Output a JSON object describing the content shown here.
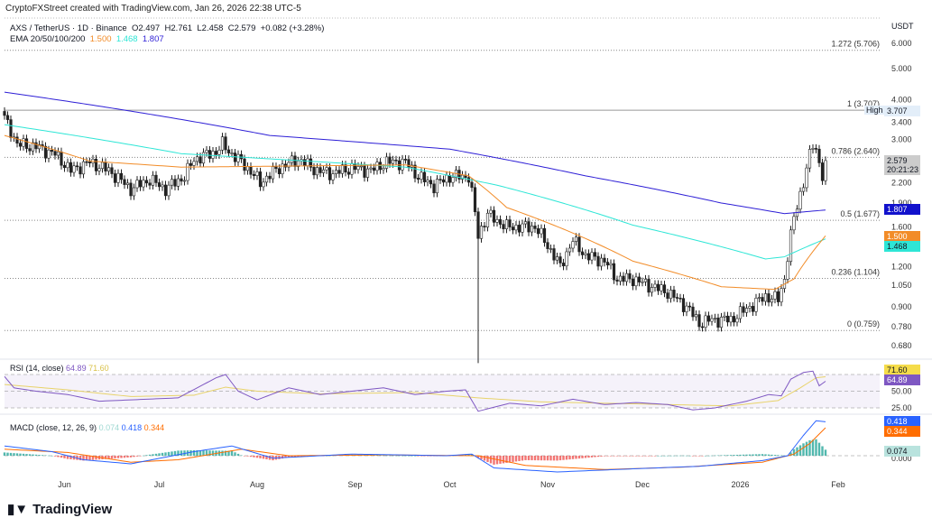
{
  "header": {
    "credit": "CryptoFXStreet created with TradingView.com, Jan 26, 2026 22:38 UTC-5"
  },
  "legend": {
    "symbol": "AXS / TetherUS · 1D · Binance",
    "open": "O2.497",
    "high": "H2.761",
    "low": "L2.458",
    "close": "C2.579",
    "change": "+0.082 (+3.28%)",
    "ema_label": "EMA 20/50/100/200",
    "ema50": "1.500",
    "ema100": "1.468",
    "ema200": "1.807"
  },
  "colors": {
    "ema50": "#f28c28",
    "ema100": "#2ee6d6",
    "ema200": "#2e1fd6",
    "rsi": "#7e57c2",
    "rsi_ma": "#e8d36a",
    "macd": "#2962ff",
    "signal": "#ff6d00",
    "hist_up": "#26a69a",
    "hist_dn": "#ef5350"
  },
  "axis": {
    "currency": "USDT",
    "high_label": "High",
    "countdown": "20:21:23",
    "last_price": "2.579"
  },
  "rsi_legend": {
    "label": "RSI (14, close)",
    "value": "64.89",
    "ma": "71.60"
  },
  "macd_legend": {
    "label": "MACD (close, 12, 26, 9)",
    "hist": "0.074",
    "macd": "0.418",
    "signal": "0.344"
  },
  "brand": "TradingView",
  "chart_data": {
    "type": "candlestick",
    "title": "AXS / TetherUS · 1D · Binance",
    "yscale": "log",
    "ylim": [
      0.63,
      7.2
    ],
    "yticks": [
      "6.000",
      "5.000",
      "4.000",
      "3.400",
      "3.000",
      "2.200",
      "1.900",
      "1.600",
      "1.200",
      "1.050",
      "0.900",
      "0.780",
      "0.680"
    ],
    "xticks": [
      {
        "label": "Jun",
        "day": 19
      },
      {
        "label": "Jul",
        "day": 49
      },
      {
        "label": "Aug",
        "day": 80
      },
      {
        "label": "Sep",
        "day": 111
      },
      {
        "label": "Oct",
        "day": 141
      },
      {
        "label": "Nov",
        "day": 172
      },
      {
        "label": "Dec",
        "day": 202
      },
      {
        "label": "2026",
        "day": 233
      },
      {
        "label": "Feb",
        "day": 264
      }
    ],
    "fib_levels": [
      {
        "label": "1.272 (5.706)",
        "value": 5.706
      },
      {
        "label": "1 (3.707)",
        "value": 3.707
      },
      {
        "label": "0.786 (2.640)",
        "value": 2.64
      },
      {
        "label": "0.5 (1.677)",
        "value": 1.677
      },
      {
        "label": "0.236 (1.104)",
        "value": 1.104
      },
      {
        "label": "0 (0.759)",
        "value": 0.759
      }
    ],
    "close_points": [
      [
        0,
        3.5
      ],
      [
        4,
        2.9
      ],
      [
        10,
        2.85
      ],
      [
        16,
        2.7
      ],
      [
        21,
        2.4
      ],
      [
        27,
        2.55
      ],
      [
        33,
        2.4
      ],
      [
        40,
        2.1
      ],
      [
        46,
        2.25
      ],
      [
        51,
        2.1
      ],
      [
        57,
        2.3
      ],
      [
        60,
        2.6
      ],
      [
        67,
        2.75
      ],
      [
        69,
        2.9
      ],
      [
        72,
        2.7
      ],
      [
        76,
        2.5
      ],
      [
        81,
        2.2
      ],
      [
        87,
        2.45
      ],
      [
        93,
        2.6
      ],
      [
        99,
        2.4
      ],
      [
        104,
        2.35
      ],
      [
        110,
        2.45
      ],
      [
        116,
        2.4
      ],
      [
        121,
        2.55
      ],
      [
        127,
        2.55
      ],
      [
        131,
        2.3
      ],
      [
        136,
        2.15
      ],
      [
        141,
        2.3
      ],
      [
        147,
        2.3
      ],
      [
        150,
        1.5
      ],
      [
        153,
        1.75
      ],
      [
        159,
        1.6
      ],
      [
        164,
        1.6
      ],
      [
        168,
        1.6
      ],
      [
        171,
        1.45
      ],
      [
        176,
        1.2
      ],
      [
        180,
        1.45
      ],
      [
        184,
        1.3
      ],
      [
        190,
        1.25
      ],
      [
        194,
        1.1
      ],
      [
        199,
        1.1
      ],
      [
        204,
        1.05
      ],
      [
        210,
        1.0
      ],
      [
        216,
        0.9
      ],
      [
        220,
        0.8
      ],
      [
        224,
        0.82
      ],
      [
        230,
        0.82
      ],
      [
        236,
        0.9
      ],
      [
        241,
        0.97
      ],
      [
        245,
        0.95
      ],
      [
        247,
        1.1
      ],
      [
        250,
        1.7
      ],
      [
        253,
        2.2
      ],
      [
        256,
        2.9
      ],
      [
        257,
        2.8
      ],
      [
        259,
        2.3
      ],
      [
        260,
        2.579
      ]
    ],
    "ema200": [
      [
        0,
        4.22
      ],
      [
        84,
        3.09
      ],
      [
        141,
        2.8
      ],
      [
        184,
        2.31
      ],
      [
        227,
        1.9
      ],
      [
        247,
        1.76
      ],
      [
        260,
        1.807
      ]
    ],
    "ema100": [
      [
        0,
        3.34
      ],
      [
        56,
        2.71
      ],
      [
        127,
        2.46
      ],
      [
        156,
        2.16
      ],
      [
        199,
        1.62
      ],
      [
        241,
        1.27
      ],
      [
        247,
        1.29
      ],
      [
        260,
        1.468
      ]
    ],
    "ema50": [
      [
        0,
        3.09
      ],
      [
        27,
        2.57
      ],
      [
        56,
        2.46
      ],
      [
        127,
        2.5
      ],
      [
        147,
        2.31
      ],
      [
        159,
        1.84
      ],
      [
        199,
        1.25
      ],
      [
        227,
        1.04
      ],
      [
        244,
        1.02
      ],
      [
        250,
        1.1
      ],
      [
        260,
        1.5
      ]
    ],
    "rsi": {
      "levels": [
        75,
        50,
        25
      ],
      "ticks": [
        "50.00",
        "25.00"
      ],
      "values": [
        [
          0,
          72
        ],
        [
          3,
          55
        ],
        [
          10,
          50
        ],
        [
          20,
          45
        ],
        [
          30,
          35
        ],
        [
          40,
          37
        ],
        [
          55,
          40
        ],
        [
          67,
          70
        ],
        [
          70,
          75
        ],
        [
          74,
          50
        ],
        [
          80,
          37
        ],
        [
          90,
          55
        ],
        [
          100,
          45
        ],
        [
          110,
          50
        ],
        [
          120,
          55
        ],
        [
          130,
          45
        ],
        [
          140,
          50
        ],
        [
          146,
          52
        ],
        [
          150,
          20
        ],
        [
          160,
          32
        ],
        [
          170,
          28
        ],
        [
          180,
          38
        ],
        [
          190,
          30
        ],
        [
          200,
          33
        ],
        [
          210,
          30
        ],
        [
          218,
          22
        ],
        [
          225,
          25
        ],
        [
          235,
          35
        ],
        [
          242,
          45
        ],
        [
          246,
          43
        ],
        [
          249,
          68
        ],
        [
          253,
          78
        ],
        [
          256,
          80
        ],
        [
          258,
          58
        ],
        [
          260,
          64.89
        ]
      ],
      "ma": [
        [
          0,
          60
        ],
        [
          20,
          52
        ],
        [
          40,
          42
        ],
        [
          60,
          44
        ],
        [
          70,
          56
        ],
        [
          80,
          50
        ],
        [
          100,
          46
        ],
        [
          130,
          48
        ],
        [
          150,
          40
        ],
        [
          170,
          34
        ],
        [
          190,
          32
        ],
        [
          210,
          30
        ],
        [
          230,
          28
        ],
        [
          245,
          36
        ],
        [
          252,
          55
        ],
        [
          257,
          70
        ],
        [
          260,
          71.6
        ]
      ]
    },
    "macd": {
      "ticks": [
        "0.000"
      ],
      "macd": [
        [
          0,
          0.12
        ],
        [
          15,
          0.05
        ],
        [
          25,
          -0.05
        ],
        [
          40,
          -0.1
        ],
        [
          60,
          0.05
        ],
        [
          72,
          0.12
        ],
        [
          85,
          -0.03
        ],
        [
          110,
          0.02
        ],
        [
          140,
          0.0
        ],
        [
          148,
          0.02
        ],
        [
          155,
          -0.15
        ],
        [
          175,
          -0.2
        ],
        [
          200,
          -0.16
        ],
        [
          220,
          -0.13
        ],
        [
          240,
          -0.06
        ],
        [
          248,
          0.0
        ],
        [
          253,
          0.25
        ],
        [
          257,
          0.43
        ],
        [
          260,
          0.418
        ]
      ],
      "signal": [
        [
          0,
          0.08
        ],
        [
          20,
          0.04
        ],
        [
          40,
          -0.08
        ],
        [
          55,
          -0.05
        ],
        [
          75,
          0.08
        ],
        [
          90,
          0.0
        ],
        [
          120,
          0.01
        ],
        [
          150,
          0.0
        ],
        [
          165,
          -0.12
        ],
        [
          190,
          -0.17
        ],
        [
          215,
          -0.14
        ],
        [
          240,
          -0.08
        ],
        [
          250,
          0.02
        ],
        [
          255,
          0.15
        ],
        [
          260,
          0.344
        ]
      ]
    }
  }
}
